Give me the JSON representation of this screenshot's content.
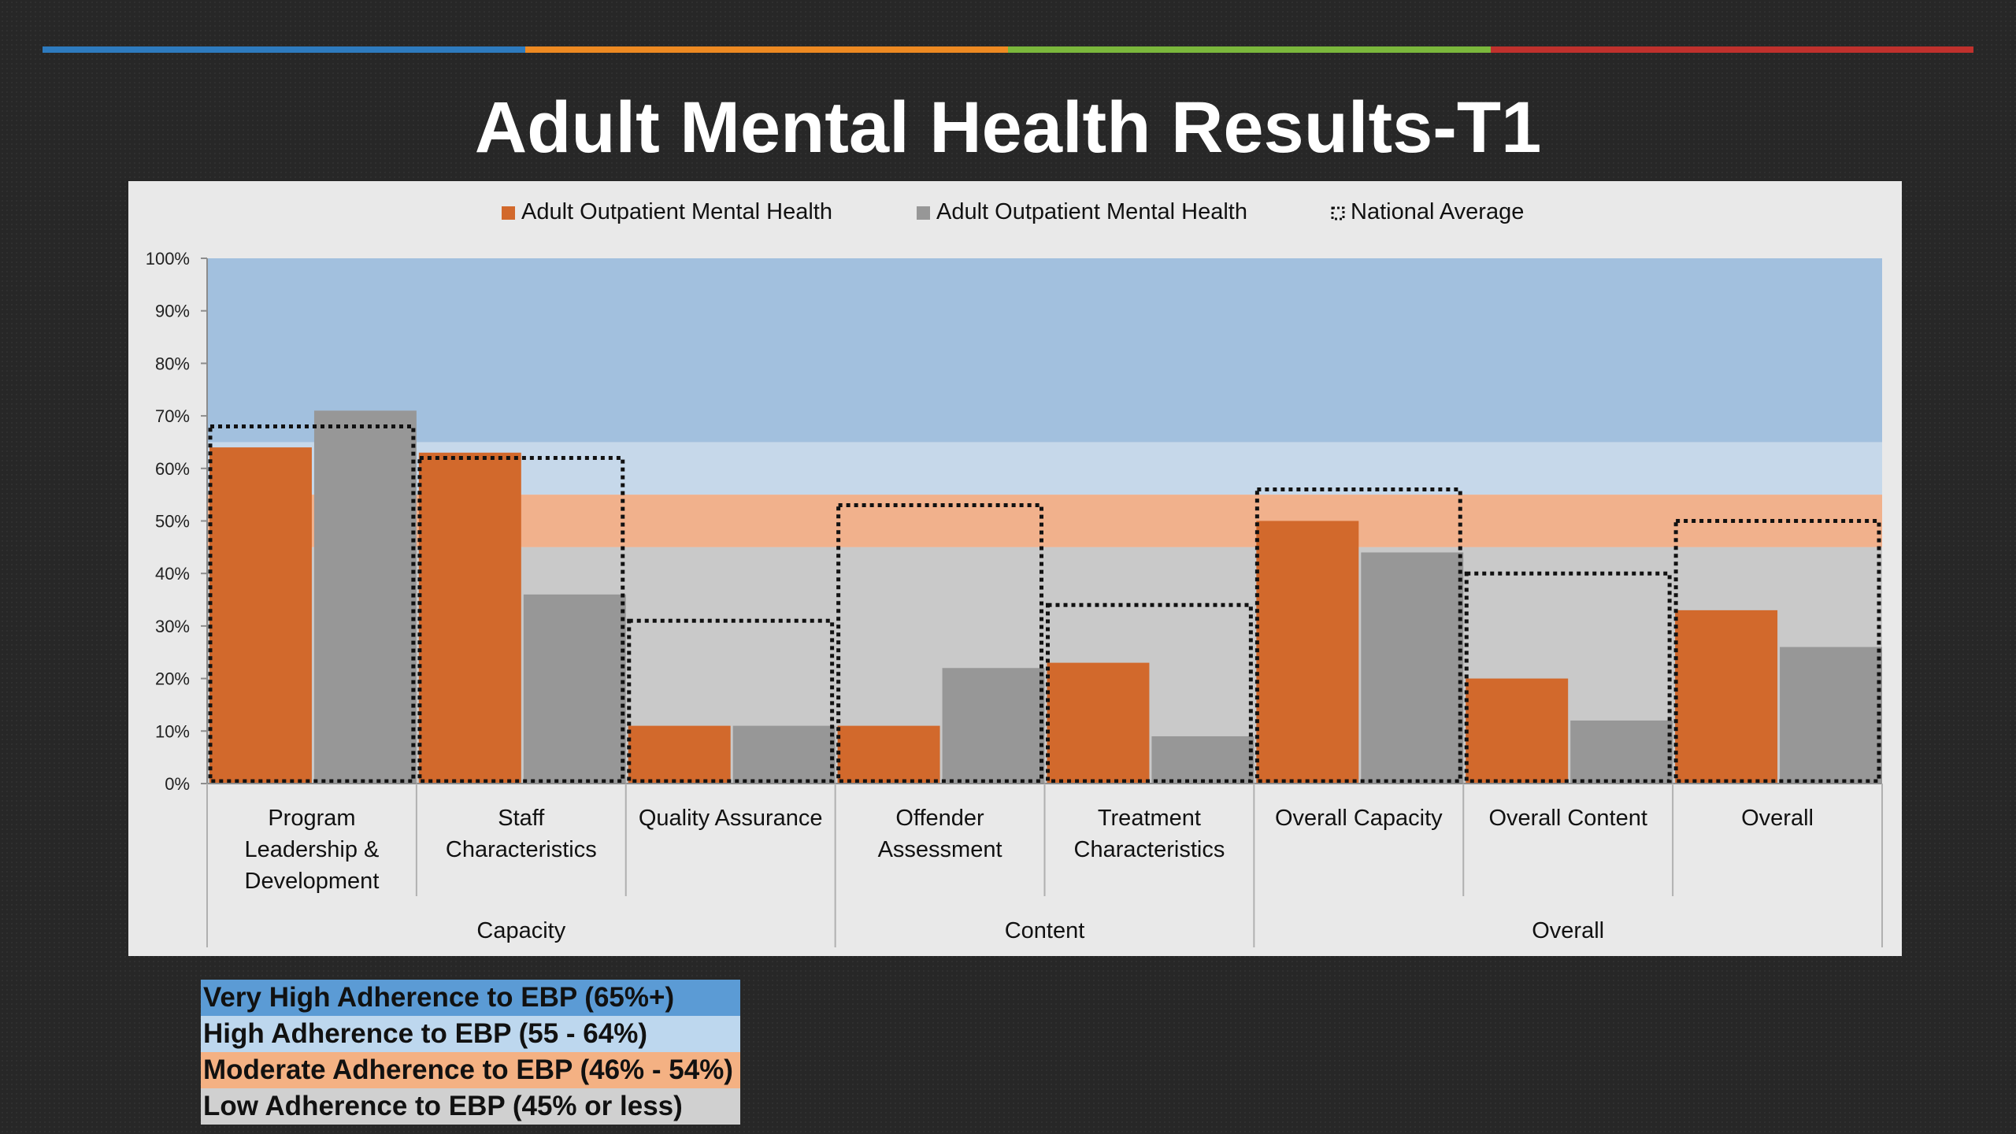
{
  "title": "Adult Mental Health Results-T1",
  "accent_bar_colors": [
    "#2e7bbf",
    "#ee8a22",
    "#7bb83c",
    "#c0312d"
  ],
  "colors": {
    "series_orange": "#d2692c",
    "series_gray": "#979797",
    "band_very_high": "#a2c0de",
    "band_high": "#c6d8ea",
    "band_moderate": "#f1b18c",
    "band_low": "#c9c9c9",
    "chart_background": "#e9e9e9"
  },
  "band_legend": [
    {
      "label": "Very High Adherence to EBP (65%+)",
      "color": "#5b9bd5"
    },
    {
      "label": "High Adherence to EBP (55 - 64%)",
      "color": "#bdd7ee"
    },
    {
      "label": "Moderate Adherence to EBP (46% - 54%)",
      "color": "#f4b183"
    },
    {
      "label": "Low Adherence to EBP (45% or less)",
      "color": "#d0d0d0"
    }
  ],
  "chart_data": {
    "type": "bar",
    "title": "Adult Mental Health Results-T1",
    "categories": [
      "Program Leadership & Development",
      "Staff Characteristics",
      "Quality Assurance",
      "Offender Assessment",
      "Treatment Characteristics",
      "Overall Capacity",
      "Overall Content",
      "Overall"
    ],
    "category_lines": [
      [
        "Program",
        "Leadership &",
        "Development"
      ],
      [
        "Staff",
        "Characteristics"
      ],
      [
        "Quality Assurance"
      ],
      [
        "Offender",
        "Assessment"
      ],
      [
        "Treatment",
        "Characteristics"
      ],
      [
        "Overall Capacity"
      ],
      [
        "Overall Content"
      ],
      [
        "Overall"
      ]
    ],
    "groups": [
      {
        "label": "Capacity",
        "span": 3
      },
      {
        "label": "Content",
        "span": 2
      },
      {
        "label": "Overall",
        "span": 3
      }
    ],
    "series": [
      {
        "name": "Adult Outpatient Mental Health",
        "color": "#d2692c",
        "values": [
          64,
          63,
          11,
          11,
          23,
          50,
          20,
          33
        ]
      },
      {
        "name": "Adult Outpatient Mental Health",
        "color": "#979797",
        "values": [
          71,
          36,
          11,
          22,
          9,
          44,
          12,
          26
        ]
      }
    ],
    "national_average": {
      "name": "National Average",
      "values": [
        68,
        62,
        31,
        53,
        34,
        56,
        40,
        50
      ]
    },
    "bands": [
      {
        "from": 65,
        "to": 100,
        "color": "#a2c0de"
      },
      {
        "from": 55,
        "to": 65,
        "color": "#c6d8ea"
      },
      {
        "from": 45,
        "to": 55,
        "color": "#f1b18c"
      },
      {
        "from": 0,
        "to": 45,
        "color": "#c9c9c9"
      }
    ],
    "ylim": [
      0,
      100
    ],
    "yticks": [
      0,
      10,
      20,
      30,
      40,
      50,
      60,
      70,
      80,
      90,
      100
    ],
    "ytick_labels": [
      "0%",
      "10%",
      "20%",
      "30%",
      "40%",
      "50%",
      "60%",
      "70%",
      "80%",
      "90%",
      "100%"
    ],
    "xlabel": "",
    "ylabel": "",
    "grid": false,
    "legend_position": "top-center"
  }
}
